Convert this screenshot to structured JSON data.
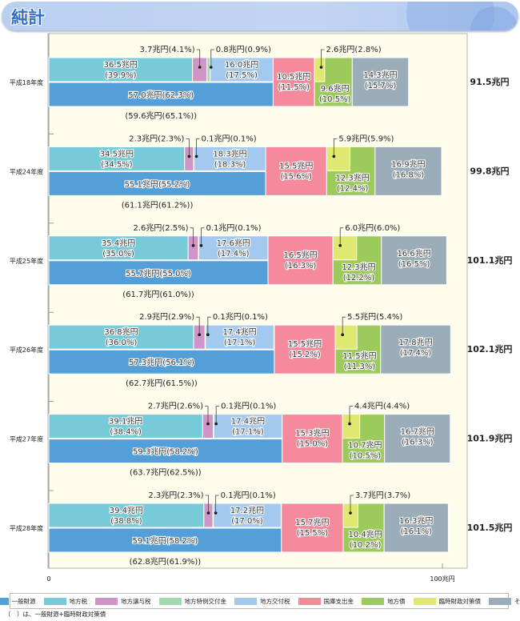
{
  "header": {
    "title": "純計"
  },
  "chart_data": {
    "type": "bar",
    "orientation": "horizontal",
    "stacked": true,
    "title": "純計",
    "unit": "兆円",
    "xlim": [
      0,
      100
    ],
    "xticks": [
      "0",
      "100兆円"
    ],
    "grid": false,
    "legend_placement": "bottom",
    "series_meta": [
      {
        "key": "ippan",
        "name": "一般財源",
        "color": "#559fd9"
      },
      {
        "key": "chihozei",
        "name": "地方税",
        "color": "#77cad8"
      },
      {
        "key": "joyo",
        "name": "地方譲与税",
        "color": "#cf95c6"
      },
      {
        "key": "tokurei",
        "name": "地方特例交付金",
        "color": "#a3d8b0"
      },
      {
        "key": "kofu",
        "name": "地方交付税",
        "color": "#a3c9ee"
      },
      {
        "key": "kokko",
        "name": "国庫支出金",
        "color": "#f48a9b"
      },
      {
        "key": "chihosai",
        "name": "地方債",
        "color": "#9cca5b"
      },
      {
        "key": "rinji",
        "name": "臨時財政対策債",
        "color": "#dfe871"
      },
      {
        "key": "sonota",
        "name": "その他",
        "color": "#9aadb9"
      }
    ],
    "categories": [
      "平成18年度",
      "平成24年度",
      "平成25年度",
      "平成26年度",
      "平成27年度",
      "平成28年度"
    ],
    "rows": [
      {
        "year": "平成18年度",
        "total": "91.5兆円",
        "ippan": {
          "value": 57.0,
          "label": "57.0兆円(62.3%)"
        },
        "ippan_plus_rinji": "(59.6兆円(65.1%))",
        "chihozei": {
          "value": 36.5,
          "label1": "36.5兆円",
          "label2": "(39.9%)"
        },
        "joyo": {
          "value": 3.7,
          "label": "3.7兆円(4.1%)"
        },
        "tokurei": {
          "value": 0.8,
          "label": "0.8兆円(0.9%)"
        },
        "kofu": {
          "value": 16.0,
          "label1": "16.0兆円",
          "label2": "(17.5%)"
        },
        "kokko": {
          "value": 10.5,
          "label1": "10.5兆円",
          "label2": "(11.5%)"
        },
        "rinji": {
          "value": 2.6,
          "label": "2.6兆円(2.8%)"
        },
        "chihosai": {
          "value": 9.6,
          "label1": "9.6兆円",
          "label2": "(10.5%)"
        },
        "sonota": {
          "value": 14.3,
          "label1": "14.3兆円",
          "label2": "(15.7%)"
        }
      },
      {
        "year": "平成24年度",
        "total": "99.8兆円",
        "ippan": {
          "value": 55.1,
          "label": "55.1兆円(55.2%)"
        },
        "ippan_plus_rinji": "(61.1兆円(61.2%))",
        "chihozei": {
          "value": 34.5,
          "label1": "34.5兆円",
          "label2": "(34.5%)"
        },
        "joyo": {
          "value": 2.3,
          "label": "2.3兆円(2.3%)"
        },
        "tokurei": {
          "value": 0.1,
          "label": "0.1兆円(0.1%)"
        },
        "kofu": {
          "value": 18.3,
          "label1": "18.3兆円",
          "label2": "(18.3%)"
        },
        "kokko": {
          "value": 15.5,
          "label1": "15.5兆円",
          "label2": "(15.6%)"
        },
        "rinji": {
          "value": 5.9,
          "label": "5.9兆円(5.9%)"
        },
        "chihosai": {
          "value": 12.3,
          "label1": "12.3兆円",
          "label2": "(12.4%)"
        },
        "sonota": {
          "value": 16.9,
          "label1": "16.9兆円",
          "label2": "(16.8%)"
        }
      },
      {
        "year": "平成25年度",
        "total": "101.1兆円",
        "ippan": {
          "value": 55.7,
          "label": "55.7兆円(55.0%)"
        },
        "ippan_plus_rinji": "(61.7兆円(61.0%))",
        "chihozei": {
          "value": 35.4,
          "label1": "35.4兆円",
          "label2": "(35.0%)"
        },
        "joyo": {
          "value": 2.6,
          "label": "2.6兆円(2.5%)"
        },
        "tokurei": {
          "value": 0.1,
          "label": "0.1兆円(0.1%)"
        },
        "kofu": {
          "value": 17.6,
          "label1": "17.6兆円",
          "label2": "(17.4%)"
        },
        "kokko": {
          "value": 16.5,
          "label1": "16.5兆円",
          "label2": "(16.3%)"
        },
        "rinji": {
          "value": 6.0,
          "label": "6.0兆円(6.0%)"
        },
        "chihosai": {
          "value": 12.3,
          "label1": "12.3兆円",
          "label2": "(12.2%)"
        },
        "sonota": {
          "value": 16.6,
          "label1": "16.6兆円",
          "label2": "(16.5%)"
        }
      },
      {
        "year": "平成26年度",
        "total": "102.1兆円",
        "ippan": {
          "value": 57.3,
          "label": "57.3兆円(56.1%)"
        },
        "ippan_plus_rinji": "(62.7兆円(61.5%))",
        "chihozei": {
          "value": 36.8,
          "label1": "36.8兆円",
          "label2": "(36.0%)"
        },
        "joyo": {
          "value": 2.9,
          "label": "2.9兆円(2.9%)"
        },
        "tokurei": {
          "value": 0.1,
          "label": "0.1兆円(0.1%)"
        },
        "kofu": {
          "value": 17.4,
          "label1": "17.4兆円",
          "label2": "(17.1%)"
        },
        "kokko": {
          "value": 15.5,
          "label1": "15.5兆円",
          "label2": "(15.2%)"
        },
        "rinji": {
          "value": 5.5,
          "label": "5.5兆円(5.4%)"
        },
        "chihosai": {
          "value": 11.5,
          "label1": "11.5兆円",
          "label2": "(11.3%)"
        },
        "sonota": {
          "value": 17.8,
          "label1": "17.8兆円",
          "label2": "(17.4%)"
        }
      },
      {
        "year": "平成27年度",
        "total": "101.9兆円",
        "ippan": {
          "value": 59.3,
          "label": "59.3兆円(58.2%)"
        },
        "ippan_plus_rinji": "(63.7兆円(62.5%))",
        "chihozei": {
          "value": 39.1,
          "label1": "39.1兆円",
          "label2": "(38.4%)"
        },
        "joyo": {
          "value": 2.7,
          "label": "2.7兆円(2.6%)"
        },
        "tokurei": {
          "value": 0.1,
          "label": "0.1兆円(0.1%)"
        },
        "kofu": {
          "value": 17.4,
          "label1": "17.4兆円",
          "label2": "(17.1%)"
        },
        "kokko": {
          "value": 15.3,
          "label1": "15.3兆円",
          "label2": "(15.0%)"
        },
        "rinji": {
          "value": 4.4,
          "label": "4.4兆円(4.4%)"
        },
        "chihosai": {
          "value": 10.7,
          "label1": "10.7兆円",
          "label2": "(10.5%)"
        },
        "sonota": {
          "value": 16.7,
          "label1": "16.7兆円",
          "label2": "(16.3%)"
        }
      },
      {
        "year": "平成28年度",
        "total": "101.5兆円",
        "ippan": {
          "value": 59.1,
          "label": "59.1兆円(58.2%)"
        },
        "ippan_plus_rinji": "(62.8兆円(61.9%))",
        "chihozei": {
          "value": 39.4,
          "label1": "39.4兆円",
          "label2": "(38.8%)"
        },
        "joyo": {
          "value": 2.3,
          "label": "2.3兆円(2.3%)"
        },
        "tokurei": {
          "value": 0.1,
          "label": "0.1兆円(0.1%)"
        },
        "kofu": {
          "value": 17.2,
          "label1": "17.2兆円",
          "label2": "(17.0%)"
        },
        "kokko": {
          "value": 15.7,
          "label1": "15.7兆円",
          "label2": "(15.5%)"
        },
        "rinji": {
          "value": 3.7,
          "label": "3.7兆円(3.7%)"
        },
        "chihosai": {
          "value": 10.4,
          "label1": "10.4兆円",
          "label2": "(10.2%)"
        },
        "sonota": {
          "value": 16.3,
          "label1": "16.3兆円",
          "label2": "(16.1%)"
        }
      }
    ]
  },
  "legend": {
    "items": [
      {
        "label": "一般財源",
        "color": "#559fd9"
      },
      {
        "label": "地方税",
        "color": "#77cad8"
      },
      {
        "label": "地方譲与税",
        "color": "#cf95c6"
      },
      {
        "label": "地方特例交付金",
        "color": "#a3d8b0"
      },
      {
        "label": "地方交付税",
        "color": "#a3c9ee"
      },
      {
        "label": "国庫支出金",
        "color": "#f48a9b"
      },
      {
        "label": "地方債",
        "color": "#9cca5b"
      },
      {
        "label": "臨時財政対策債",
        "color": "#dfe871"
      },
      {
        "label": "その他",
        "color": "#9aadb9"
      }
    ]
  },
  "footnote": "〔　〕は、一般財源+臨時財政対策債"
}
